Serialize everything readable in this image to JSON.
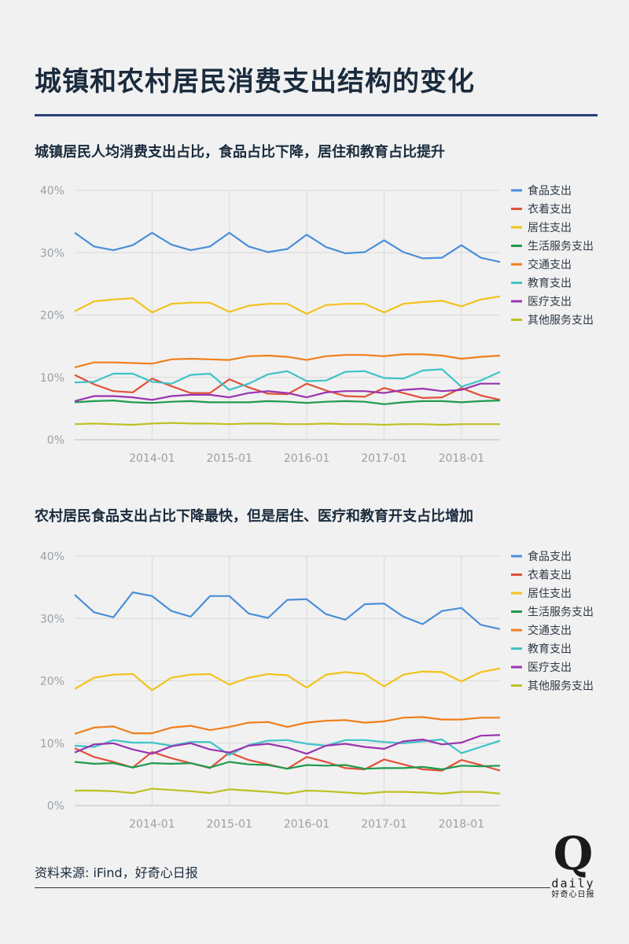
{
  "page": {
    "title": "城镇和农村居民消费支出结构的变化",
    "source": "资料来源: iFind，好奇心日报",
    "logo": {
      "mark": "Q",
      "word": "daily",
      "name": "好奇心日报"
    }
  },
  "colors": {
    "食品支出": "#4a8fd9",
    "衣着支出": "#e0513a",
    "居住支出": "#f2c21d",
    "生活服务支出": "#1f9a4d",
    "交通支出": "#f07f1c",
    "教育支出": "#3ec3c8",
    "医疗支出": "#9a35b0",
    "其他服务支出": "#bec124"
  },
  "chart_data": [
    {
      "type": "line",
      "title": "城镇居民人均消费支出占比，食品占比下降，居住和教育占比提升",
      "xlabel": "",
      "ylabel": "",
      "x": [
        "2013-Q1",
        "2013-Q2",
        "2013-Q3",
        "2013-Q4",
        "2014-Q1",
        "2014-Q2",
        "2014-Q3",
        "2014-Q4",
        "2015-Q1",
        "2015-Q2",
        "2015-Q3",
        "2015-Q4",
        "2016-Q1",
        "2016-Q2",
        "2016-Q3",
        "2016-Q4",
        "2017-Q1",
        "2017-Q2",
        "2017-Q3",
        "2017-Q4",
        "2018-Q1",
        "2018-Q2",
        "2018-Q3"
      ],
      "xticks": [
        "2014-01",
        "2015-01",
        "2016-01",
        "2017-01",
        "2018-01"
      ],
      "yticks": [
        "0%",
        "10%",
        "20%",
        "30%",
        "40%"
      ],
      "ylim": [
        0,
        40
      ],
      "grid": true,
      "legend_position": "right",
      "series": [
        {
          "name": "食品支出",
          "values": [
            33.2,
            31.0,
            30.4,
            31.2,
            33.2,
            31.3,
            30.4,
            31.0,
            33.2,
            31.0,
            30.1,
            30.6,
            32.9,
            30.9,
            29.9,
            30.1,
            32.0,
            30.1,
            29.1,
            29.2,
            31.2,
            29.2,
            28.5
          ]
        },
        {
          "name": "衣着支出",
          "values": [
            10.4,
            8.9,
            7.8,
            7.6,
            9.8,
            8.6,
            7.5,
            7.5,
            9.7,
            8.4,
            7.4,
            7.3,
            9.0,
            7.9,
            7.0,
            6.9,
            8.3,
            7.5,
            6.7,
            6.8,
            8.3,
            7.1,
            6.4
          ]
        },
        {
          "name": "居住支出",
          "values": [
            20.6,
            22.2,
            22.5,
            22.7,
            20.4,
            21.8,
            22.0,
            22.0,
            20.5,
            21.5,
            21.8,
            21.8,
            20.2,
            21.6,
            21.8,
            21.8,
            20.4,
            21.8,
            22.1,
            22.3,
            21.4,
            22.5,
            23.0
          ]
        },
        {
          "name": "生活服务支出",
          "values": [
            6.0,
            6.2,
            6.3,
            6.0,
            5.9,
            6.1,
            6.2,
            6.0,
            6.0,
            6.0,
            6.2,
            6.1,
            5.9,
            6.1,
            6.2,
            6.1,
            5.7,
            6.0,
            6.2,
            6.2,
            6.0,
            6.2,
            6.3
          ]
        },
        {
          "name": "交通支出",
          "values": [
            11.6,
            12.4,
            12.4,
            12.3,
            12.2,
            12.9,
            13.0,
            12.9,
            12.8,
            13.4,
            13.5,
            13.3,
            12.8,
            13.4,
            13.6,
            13.6,
            13.4,
            13.7,
            13.7,
            13.5,
            13.0,
            13.3,
            13.5
          ]
        },
        {
          "name": "教育支出",
          "values": [
            9.2,
            9.3,
            10.6,
            10.6,
            9.3,
            9.0,
            10.4,
            10.6,
            8.0,
            9.0,
            10.5,
            11.0,
            9.4,
            9.5,
            10.9,
            11.0,
            9.9,
            9.8,
            11.1,
            11.3,
            8.5,
            9.5,
            10.9
          ]
        },
        {
          "name": "医疗支出",
          "values": [
            6.2,
            7.0,
            7.0,
            6.8,
            6.4,
            7.0,
            7.2,
            7.2,
            6.8,
            7.5,
            7.8,
            7.5,
            6.8,
            7.6,
            7.8,
            7.8,
            7.5,
            8.0,
            8.2,
            7.8,
            8.0,
            9.0,
            9.0
          ]
        },
        {
          "name": "其他服务支出",
          "values": [
            2.5,
            2.6,
            2.5,
            2.4,
            2.6,
            2.7,
            2.6,
            2.6,
            2.5,
            2.6,
            2.6,
            2.5,
            2.5,
            2.6,
            2.5,
            2.5,
            2.4,
            2.5,
            2.5,
            2.4,
            2.5,
            2.5,
            2.5
          ]
        }
      ]
    },
    {
      "type": "line",
      "title": "农村居民食品支出占比下降最快，但是居住、医疗和教育开支占比增加",
      "xlabel": "",
      "ylabel": "",
      "x": [
        "2013-Q1",
        "2013-Q2",
        "2013-Q3",
        "2013-Q4",
        "2014-Q1",
        "2014-Q2",
        "2014-Q3",
        "2014-Q4",
        "2015-Q1",
        "2015-Q2",
        "2015-Q3",
        "2015-Q4",
        "2016-Q1",
        "2016-Q2",
        "2016-Q3",
        "2016-Q4",
        "2017-Q1",
        "2017-Q2",
        "2017-Q3",
        "2017-Q4",
        "2018-Q1",
        "2018-Q2",
        "2018-Q3"
      ],
      "xticks": [
        "2014-01",
        "2015-01",
        "2016-01",
        "2017-01",
        "2018-01"
      ],
      "yticks": [
        "0%",
        "10%",
        "20%",
        "30%",
        "40%"
      ],
      "ylim": [
        0,
        40
      ],
      "grid": true,
      "legend_position": "right",
      "series": [
        {
          "name": "食品支出",
          "values": [
            33.8,
            31.0,
            30.2,
            34.2,
            33.6,
            31.2,
            30.3,
            33.6,
            33.6,
            30.8,
            30.1,
            33.0,
            33.1,
            30.7,
            29.8,
            32.3,
            32.4,
            30.3,
            29.1,
            31.2,
            31.7,
            29.0,
            28.3
          ]
        },
        {
          "name": "衣着支出",
          "values": [
            9.2,
            7.8,
            7.0,
            6.1,
            8.6,
            7.6,
            6.8,
            6.0,
            8.5,
            7.3,
            6.6,
            5.9,
            7.8,
            7.0,
            6.0,
            5.8,
            7.4,
            6.6,
            5.8,
            5.6,
            7.3,
            6.5,
            5.6
          ]
        },
        {
          "name": "居住支出",
          "values": [
            18.7,
            20.5,
            21.0,
            21.1,
            18.5,
            20.5,
            21.0,
            21.1,
            19.4,
            20.5,
            21.1,
            20.9,
            18.9,
            21.0,
            21.4,
            21.1,
            19.1,
            21.0,
            21.5,
            21.4,
            19.9,
            21.4,
            22.0
          ]
        },
        {
          "name": "生活服务支出",
          "values": [
            7.0,
            6.7,
            6.8,
            6.1,
            6.8,
            6.7,
            6.8,
            6.1,
            7.0,
            6.6,
            6.5,
            5.9,
            6.5,
            6.4,
            6.5,
            5.9,
            6.0,
            6.0,
            6.2,
            5.8,
            6.4,
            6.3,
            6.4
          ]
        },
        {
          "name": "交通支出",
          "values": [
            11.5,
            12.5,
            12.7,
            11.6,
            11.6,
            12.5,
            12.8,
            12.1,
            12.6,
            13.3,
            13.4,
            12.6,
            13.3,
            13.6,
            13.7,
            13.3,
            13.5,
            14.1,
            14.2,
            13.8,
            13.8,
            14.1,
            14.1
          ]
        },
        {
          "name": "教育支出",
          "values": [
            9.6,
            9.4,
            10.5,
            10.1,
            10.1,
            9.6,
            10.2,
            10.2,
            8.1,
            9.7,
            10.4,
            10.5,
            9.9,
            9.6,
            10.5,
            10.5,
            10.2,
            10.0,
            10.3,
            10.6,
            8.4,
            9.4,
            10.4
          ]
        },
        {
          "name": "医疗支出",
          "values": [
            8.5,
            9.8,
            10.0,
            9.0,
            8.3,
            9.5,
            10.0,
            9.0,
            8.5,
            9.6,
            9.9,
            9.3,
            8.3,
            9.6,
            9.9,
            9.4,
            9.1,
            10.3,
            10.6,
            9.8,
            10.1,
            11.2,
            11.3
          ]
        },
        {
          "name": "其他服务支出",
          "values": [
            2.4,
            2.4,
            2.3,
            2.0,
            2.7,
            2.5,
            2.3,
            2.0,
            2.6,
            2.4,
            2.2,
            1.9,
            2.4,
            2.3,
            2.1,
            1.9,
            2.2,
            2.2,
            2.1,
            1.9,
            2.2,
            2.2,
            1.9
          ]
        }
      ]
    }
  ]
}
